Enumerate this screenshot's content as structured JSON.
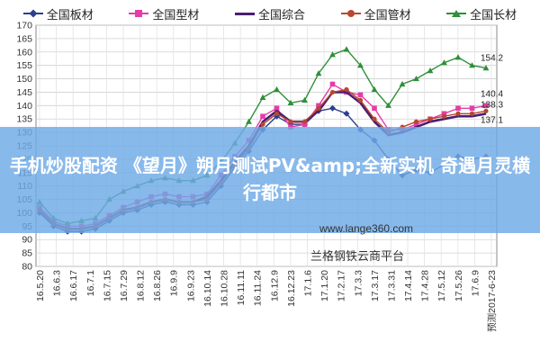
{
  "overlay": {
    "title": "手机炒股配资 《望月》朔月测试PV&amp;全新实机 奇遇月灵横行都市"
  },
  "watermark": "www.lange360.com",
  "platform": "兰格钢铁云商平台",
  "colors": {
    "overlay": "#6aaae6"
  },
  "chart_data": {
    "type": "line",
    "y_ticks": [
      "80",
      "85",
      "90",
      "95",
      "100",
      "105",
      "110",
      "115",
      "120",
      "125",
      "130",
      "135",
      "140",
      "145",
      "150",
      "155",
      "160",
      "165",
      "170"
    ],
    "ylim": [
      80,
      170
    ],
    "grid": true,
    "legend_position": "top",
    "x_ticks": [
      "16.5.20",
      "16.6.3",
      "16.6.17",
      "16.7.1",
      "16.7.15",
      "16.7.29",
      "16.8.12",
      "16.8.26",
      "16.9.9",
      "16.9.23",
      "16.10.14",
      "16.10.28",
      "16.11.11",
      "16.11.24",
      "16.12.9",
      "16.12.23",
      "17.1.6",
      "17.1.20",
      "17.2.17",
      "17.3.3",
      "17.3.17",
      "17.3.31",
      "17.4.14",
      "17.4.28",
      "17.5.12",
      "17.5.26",
      "17.6.9",
      "预测2017-6-23"
    ],
    "end_labels": [
      "154.2",
      "140.4",
      "138.3",
      "137.1"
    ],
    "series": [
      {
        "name": "全国板材",
        "color": "#2a3f8f",
        "marker": "diamond",
        "values": [
          100,
          95,
          93,
          93,
          94,
          97,
          100,
          101,
          103,
          104,
          103,
          103,
          104,
          110,
          117,
          123,
          131,
          136,
          133,
          133,
          138,
          139,
          137,
          131,
          127,
          120,
          114,
          116,
          115,
          118,
          121,
          120,
          121
        ]
      },
      {
        "name": "全国型材",
        "color": "#e63ca8",
        "marker": "square",
        "values": [
          102,
          97,
          95,
          95,
          96,
          99,
          102,
          104,
          106,
          107,
          106,
          106,
          107,
          114,
          121,
          127,
          136,
          139,
          132,
          133,
          140,
          148,
          145,
          144,
          139,
          131,
          131,
          133,
          135,
          137,
          139,
          139,
          140
        ]
      },
      {
        "name": "全国综合",
        "color": "#4b1e6f",
        "marker": "none",
        "values": [
          101,
          96,
          94,
          94,
          95,
          98,
          101,
          102,
          104,
          105,
          104,
          104,
          106,
          112,
          119,
          125,
          134,
          138,
          134,
          134,
          138,
          145,
          145,
          141,
          134,
          129,
          130,
          132,
          134,
          135,
          136,
          136,
          137
        ]
      },
      {
        "name": "全国管材",
        "color": "#b8472e",
        "marker": "circle",
        "values": [
          101,
          96,
          94,
          94,
          95,
          98,
          101,
          102,
          104,
          105,
          104,
          104,
          105,
          111,
          118,
          124,
          133,
          137,
          134,
          134,
          139,
          145,
          146,
          142,
          135,
          130,
          132,
          134,
          135,
          136,
          137,
          137,
          138
        ]
      },
      {
        "name": "全国长材",
        "color": "#2f8f3a",
        "marker": "triangle",
        "values": [
          104,
          98,
          96,
          97,
          98,
          105,
          108,
          110,
          112,
          113,
          112,
          112,
          114,
          119,
          126,
          134,
          143,
          146,
          141,
          142,
          152,
          159,
          161,
          155,
          146,
          140,
          148,
          150,
          153,
          156,
          158,
          155,
          154
        ]
      }
    ]
  }
}
